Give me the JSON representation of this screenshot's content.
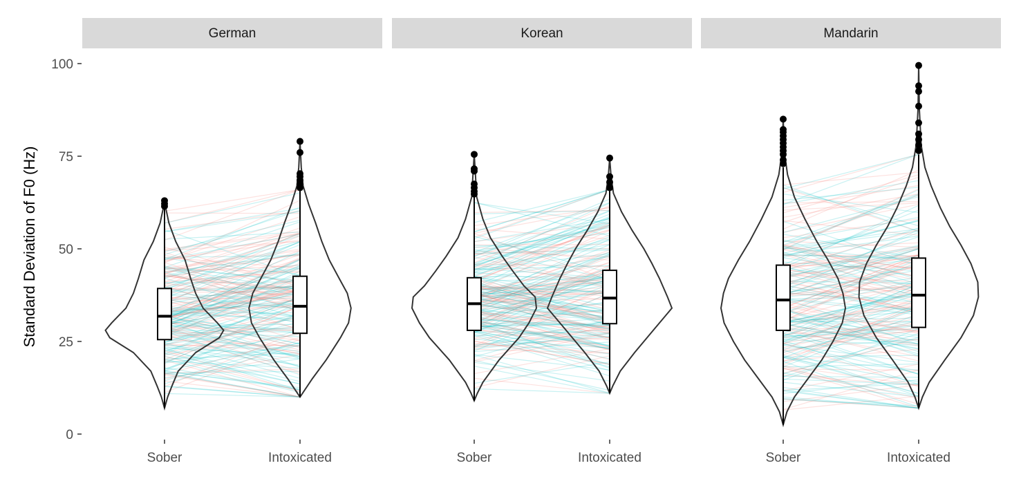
{
  "chart_data": {
    "type": "violin",
    "ylabel": "Standard Deviation of F0 (Hz)",
    "ylim": [
      0,
      100
    ],
    "yticks": [
      0,
      25,
      50,
      75,
      100
    ],
    "categories": [
      "Sober",
      "Intoxicated"
    ],
    "colors": {
      "line_a": "#f8766d",
      "line_b": "#00bfc4",
      "strip_bg": "#d9d9d9"
    },
    "panels": [
      {
        "title": "German",
        "groups": [
          {
            "label": "Sober",
            "min": 7,
            "q1": 25.5,
            "median": 31.8,
            "q3": 39.3,
            "whisker_high": 61,
            "outliers": [
              61.5,
              62.2,
              63
            ],
            "violin": [
              [
                7,
                0
              ],
              [
                10,
                0.05
              ],
              [
                13,
                0.12
              ],
              [
                17,
                0.22
              ],
              [
                22,
                0.5
              ],
              [
                26,
                0.88
              ],
              [
                28,
                0.95
              ],
              [
                30,
                0.85
              ],
              [
                34,
                0.62
              ],
              [
                38,
                0.5
              ],
              [
                42,
                0.42
              ],
              [
                47,
                0.33
              ],
              [
                52,
                0.18
              ],
              [
                57,
                0.07
              ],
              [
                61,
                0.02
              ],
              [
                63,
                0
              ]
            ]
          },
          {
            "label": "Intoxicated",
            "min": 10,
            "q1": 27.2,
            "median": 34.5,
            "q3": 42.6,
            "whisker_high": 66,
            "outliers": [
              66.5,
              67.5,
              68.5,
              69.5,
              70.3,
              76,
              79
            ],
            "violin": [
              [
                10,
                0
              ],
              [
                12,
                0.08
              ],
              [
                15,
                0.2
              ],
              [
                20,
                0.42
              ],
              [
                26,
                0.65
              ],
              [
                30,
                0.78
              ],
              [
                34,
                0.82
              ],
              [
                38,
                0.76
              ],
              [
                42,
                0.63
              ],
              [
                47,
                0.47
              ],
              [
                52,
                0.35
              ],
              [
                57,
                0.25
              ],
              [
                62,
                0.14
              ],
              [
                67,
                0.05
              ],
              [
                72,
                0.02
              ],
              [
                79,
                0
              ]
            ]
          }
        ]
      },
      {
        "title": "Korean",
        "groups": [
          {
            "label": "Sober",
            "min": 9,
            "q1": 28,
            "median": 35.2,
            "q3": 42.2,
            "whisker_high": 64,
            "outliers": [
              64.8,
              65.5,
              66.5,
              67.5,
              71,
              71.6,
              75.5
            ],
            "violin": [
              [
                9,
                0
              ],
              [
                11,
                0.05
              ],
              [
                14,
                0.14
              ],
              [
                20,
                0.4
              ],
              [
                26,
                0.72
              ],
              [
                30,
                0.88
              ],
              [
                34,
                1
              ],
              [
                37,
                0.98
              ],
              [
                40,
                0.8
              ],
              [
                44,
                0.62
              ],
              [
                48,
                0.45
              ],
              [
                53,
                0.26
              ],
              [
                58,
                0.14
              ],
              [
                64,
                0.04
              ],
              [
                70,
                0.02
              ],
              [
                75.5,
                0
              ]
            ]
          },
          {
            "label": "Intoxicated",
            "min": 11,
            "q1": 29.8,
            "median": 36.7,
            "q3": 44.2,
            "whisker_high": 66,
            "outliers": [
              66.5,
              68,
              69.5,
              74.5
            ],
            "violin": [
              [
                11,
                0
              ],
              [
                13,
                0.05
              ],
              [
                17,
                0.17
              ],
              [
                22,
                0.4
              ],
              [
                28,
                0.7
              ],
              [
                32,
                0.9
              ],
              [
                34,
                1
              ],
              [
                37,
                0.93
              ],
              [
                42,
                0.8
              ],
              [
                46,
                0.68
              ],
              [
                50,
                0.55
              ],
              [
                55,
                0.36
              ],
              [
                60,
                0.19
              ],
              [
                65,
                0.06
              ],
              [
                70,
                0.02
              ],
              [
                74.5,
                0
              ]
            ]
          }
        ]
      },
      {
        "title": "Mandarin",
        "groups": [
          {
            "label": "Sober",
            "min": 2.5,
            "q1": 28,
            "median": 36.2,
            "q3": 45.6,
            "whisker_high": 72,
            "outliers": [
              73,
              74,
              75.5,
              76.5,
              77.5,
              78.5,
              79.5,
              80.5,
              81.5,
              82.2,
              85
            ],
            "violin": [
              [
                2.5,
                0
              ],
              [
                6,
                0.06
              ],
              [
                10,
                0.18
              ],
              [
                15,
                0.4
              ],
              [
                20,
                0.62
              ],
              [
                25,
                0.8
              ],
              [
                30,
                0.95
              ],
              [
                34,
                1
              ],
              [
                38,
                0.96
              ],
              [
                42,
                0.88
              ],
              [
                47,
                0.72
              ],
              [
                52,
                0.54
              ],
              [
                58,
                0.35
              ],
              [
                64,
                0.18
              ],
              [
                70,
                0.07
              ],
              [
                76,
                0.02
              ],
              [
                85,
                0
              ]
            ]
          },
          {
            "label": "Intoxicated",
            "min": 7,
            "q1": 28.8,
            "median": 37.5,
            "q3": 47.5,
            "whisker_high": 75.5,
            "outliers": [
              76.5,
              78,
              79.5,
              81,
              84,
              88.5,
              92.5,
              94,
              99.5
            ],
            "violin": [
              [
                7,
                0
              ],
              [
                10,
                0.06
              ],
              [
                14,
                0.17
              ],
              [
                20,
                0.42
              ],
              [
                26,
                0.68
              ],
              [
                32,
                0.88
              ],
              [
                37,
                0.96
              ],
              [
                41,
                0.95
              ],
              [
                46,
                0.84
              ],
              [
                51,
                0.68
              ],
              [
                56,
                0.5
              ],
              [
                61,
                0.35
              ],
              [
                67,
                0.2
              ],
              [
                72,
                0.1
              ],
              [
                78,
                0.04
              ],
              [
                88,
                0.01
              ],
              [
                99.5,
                0
              ]
            ]
          }
        ]
      }
    ]
  }
}
